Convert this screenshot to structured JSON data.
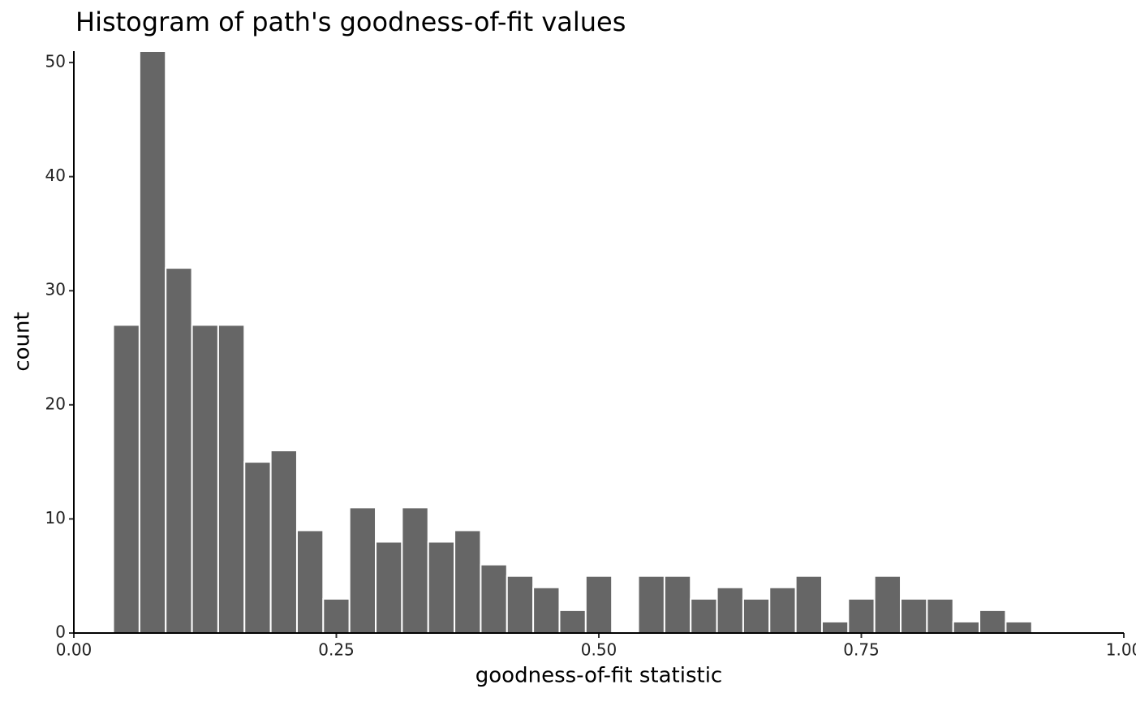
{
  "chart_data": {
    "type": "histogram",
    "title": "Histogram of path's goodness-of-fit values",
    "x_label": "goodness-of-fit statistic",
    "y_label": "count",
    "bins": [
      0.0375,
      0.0625,
      0.0875,
      0.1125,
      0.1375,
      0.1625,
      0.1875,
      0.2125,
      0.2375,
      0.2625,
      0.2875,
      0.3125,
      0.3375,
      0.3625,
      0.3875,
      0.4125,
      0.4375,
      0.4625,
      0.4875,
      0.5125,
      0.5375,
      0.5625,
      0.5875,
      0.6125,
      0.6375,
      0.6625,
      0.6875,
      0.7125,
      0.7375,
      0.7625,
      0.7875,
      0.8125,
      0.8375,
      0.8625,
      0.8875,
      0.9125
    ],
    "values": [
      27,
      51,
      32,
      27,
      27,
      15,
      16,
      9,
      3,
      11,
      8,
      11,
      8,
      9,
      6,
      5,
      4,
      2,
      5,
      0,
      5,
      5,
      3,
      4,
      3,
      4,
      5,
      1,
      3,
      5,
      3,
      3,
      1,
      2,
      1
    ],
    "color": "#666666",
    "xlim": [
      0,
      1
    ],
    "xticks": [
      {
        "value": 0,
        "label": "0.00"
      },
      {
        "value": 0.25,
        "label": "0.25"
      },
      {
        "value": 0.5,
        "label": "0.50"
      },
      {
        "value": 0.75,
        "label": "0.75"
      },
      {
        "value": 1,
        "label": "1.00"
      }
    ],
    "ylim": [
      0,
      51
    ],
    "yticks": [
      0,
      10,
      20,
      30,
      40,
      50
    ],
    "grid": false
  }
}
